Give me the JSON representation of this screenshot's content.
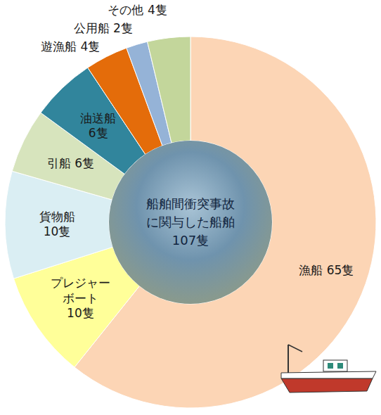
{
  "chart_data": {
    "type": "pie",
    "title": "船舶間衝突事故に関与した船舶",
    "subtitle": "107隻",
    "categories": [
      "漁船",
      "プレジャーボート",
      "貨物船",
      "引船",
      "油送船",
      "遊漁船",
      "公用船",
      "その他"
    ],
    "values": [
      65,
      10,
      10,
      6,
      6,
      4,
      2,
      4
    ],
    "value_labels": [
      "65隻",
      "10隻",
      "10隻",
      "6隻",
      "6隻",
      "4隻",
      "2隻",
      "4隻"
    ],
    "colors": [
      "#fcd5b5",
      "#ffff99",
      "#daeef3",
      "#d7e4bd",
      "#31859c",
      "#e46c0a",
      "#95b3d7",
      "#c3d69b"
    ],
    "data_labels": true
  }
}
